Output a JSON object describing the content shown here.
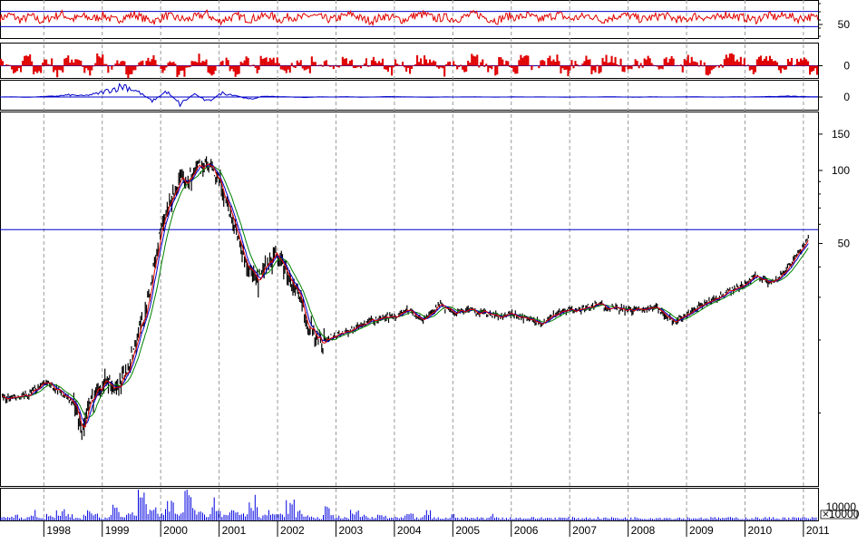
{
  "colors": {
    "background": "#ffffff",
    "frame": "#000000",
    "grid": "#9a9a9a",
    "reference_line": "#0000c8",
    "price_bar": "#000000",
    "rsi_line": "#e00000",
    "momentum_fill": "#e00000",
    "indicator_line": "#0000c8",
    "ma_fast": "#e00000",
    "ma_mid": "#0000c8",
    "ma_slow": "#008000",
    "volume": "#0000e0"
  },
  "chart_data": {
    "type": "line",
    "scale": "log",
    "grid": "vertical dashed at each year",
    "x_tick_labels": [
      "1998",
      "1999",
      "2000",
      "2001",
      "2002",
      "2003",
      "2004",
      "2005",
      "2006",
      "2007",
      "2008",
      "2009",
      "2010",
      "2011"
    ],
    "price": {
      "y_tick_labels": [
        "150",
        "100",
        "50"
      ],
      "y_ticks": [
        150,
        100,
        50
      ],
      "ylim": [
        5,
        175
      ],
      "reference_level": 57,
      "x": [
        "1997-07",
        "1997-10",
        "1998-01",
        "1998-04",
        "1998-07",
        "1998-09",
        "1998-10",
        "1998-12",
        "1999-02",
        "1999-04",
        "1999-07",
        "1999-10",
        "2000-01",
        "2000-04",
        "2000-07",
        "2000-09",
        "2000-11",
        "2001-01",
        "2001-04",
        "2001-06",
        "2001-09",
        "2001-11",
        "2002-01",
        "2002-04",
        "2002-06",
        "2002-07",
        "2002-10",
        "2003-01",
        "2003-04",
        "2003-07",
        "2003-10",
        "2004-01",
        "2004-04",
        "2004-07",
        "2004-10",
        "2005-01",
        "2005-04",
        "2005-07",
        "2005-10",
        "2006-01",
        "2006-04",
        "2006-07",
        "2006-10",
        "2007-01",
        "2007-04",
        "2007-07",
        "2007-10",
        "2008-01",
        "2008-04",
        "2008-07",
        "2008-10",
        "2008-12",
        "2009-03",
        "2009-06",
        "2009-09",
        "2009-12",
        "2010-03",
        "2010-06",
        "2010-09",
        "2010-12",
        "2011-02"
      ],
      "values": [
        11.5,
        11.8,
        13.5,
        12.4,
        11.0,
        8.6,
        10.2,
        12.8,
        13.8,
        12.2,
        17.0,
        27.0,
        56.0,
        85.0,
        95.0,
        105.0,
        103.0,
        90.0,
        62.0,
        44.0,
        34.0,
        41.0,
        45.0,
        34.0,
        28.0,
        24.0,
        19.5,
        21.0,
        22.0,
        23.5,
        24.5,
        25.0,
        26.5,
        24.0,
        28.0,
        26.0,
        26.5,
        26.0,
        25.0,
        25.5,
        24.5,
        23.5,
        25.5,
        26.5,
        27.0,
        28.0,
        27.0,
        26.5,
        27.0,
        27.0,
        24.0,
        24.5,
        27.0,
        29.0,
        31.0,
        33.0,
        37.0,
        34.0,
        38.0,
        46.0,
        52.0
      ],
      "moving_averages": [
        "fast (red)",
        "mid (blue)",
        "slow (green)"
      ]
    },
    "rsi_panel": {
      "y_tick_labels": [
        "50"
      ],
      "reference_levels": [
        70,
        30
      ],
      "ylim": [
        0,
        100
      ],
      "values": [
        52,
        61,
        47,
        58,
        44,
        55,
        63,
        49,
        57,
        51,
        60,
        46,
        54,
        62,
        50,
        45,
        59,
        53,
        48,
        56,
        64,
        43,
        52,
        58,
        49,
        55,
        61,
        47,
        57,
        52,
        60,
        54,
        48,
        56,
        63,
        50,
        45,
        58,
        53,
        47,
        59,
        62,
        51,
        55,
        49,
        57,
        64,
        52,
        46,
        58,
        54,
        60,
        48,
        56,
        62,
        50,
        55,
        59,
        47,
        53,
        61,
        57,
        49,
        54,
        60,
        52,
        46,
        58,
        55,
        50,
        63,
        57,
        53,
        48,
        59,
        55,
        61,
        50,
        56,
        52
      ]
    },
    "momentum_panel": {
      "y_tick_labels": [
        "0"
      ],
      "values": [
        0.4,
        -0.3,
        0.6,
        -0.5,
        0.2,
        -0.7,
        0.5,
        0.3,
        -0.4,
        0.6,
        -0.2,
        0.5,
        -0.6,
        0.3,
        0.7,
        -0.3,
        0.4,
        -0.5,
        0.2,
        0.6,
        -0.4,
        0.3,
        -0.6,
        0.5,
        -0.2,
        0.4,
        0.6,
        -0.3,
        0.2,
        -0.5,
        0.4,
        0.3,
        -0.4,
        0.5,
        -0.2,
        0.3,
        0.6,
        -0.4,
        0.2,
        -0.3,
        0.5,
        0.4,
        -0.5,
        0.3,
        -0.2,
        0.6,
        0.2,
        -0.4,
        0.4,
        -0.3,
        0.5,
        -0.2,
        0.3,
        0.6,
        -0.5,
        0.2,
        0.4,
        -0.3,
        0.5,
        0.3,
        -0.4,
        0.2,
        0.6,
        -0.3,
        0.4,
        -0.2,
        0.5,
        0.3,
        -0.4,
        0.2,
        0.6,
        0.3,
        -0.3,
        0.5,
        0.4,
        -0.2,
        0.3,
        0.5,
        -0.4,
        0.2
      ]
    },
    "oscillator_panel": {
      "y_tick_labels": [
        "0"
      ],
      "values": [
        0,
        0.02,
        -0.03,
        0.05,
        0.1,
        0.25,
        0.15,
        0.4,
        0.9,
        1.4,
        0.6,
        -0.5,
        0.7,
        -0.9,
        0.4,
        -0.6,
        0.5,
        0.2,
        -0.3,
        0.1,
        0.05,
        0,
        -0.05,
        0.02,
        0,
        0.03,
        -0.02,
        0,
        0.05,
        0.02,
        0,
        -0.03,
        0.01,
        0,
        0.02,
        0,
        -0.01,
        0.02,
        0,
        0.01,
        0,
        -0.02,
        0.01,
        0,
        0.03,
        0,
        -0.02,
        0.02,
        0,
        0.01,
        0.03,
        0,
        -0.01,
        0.02,
        0,
        0.04,
        0.06,
        0.1,
        0.05,
        0.02
      ]
    },
    "volume_panel": {
      "y_tick_labels": [
        "10000"
      ],
      "unit_label": "×10000",
      "values": [
        1,
        2,
        1,
        3,
        1,
        2,
        4,
        2,
        1,
        3,
        2,
        1,
        5,
        2,
        3,
        9,
        4,
        2,
        6,
        3,
        11,
        5,
        3,
        7,
        2,
        4,
        3,
        8,
        2,
        3,
        2,
        6,
        3,
        2,
        1,
        4,
        2,
        1,
        3,
        2,
        1,
        2,
        1,
        1,
        2,
        1,
        3,
        1,
        1,
        2,
        1,
        1,
        1,
        2,
        1,
        1,
        1,
        1,
        1,
        1,
        1,
        1,
        1,
        1,
        1,
        1,
        1,
        1,
        1,
        1,
        1,
        1,
        1,
        1,
        1,
        1,
        1,
        1,
        1,
        1,
        1,
        1,
        1,
        1,
        1,
        1,
        1,
        1,
        1,
        1
      ]
    }
  }
}
